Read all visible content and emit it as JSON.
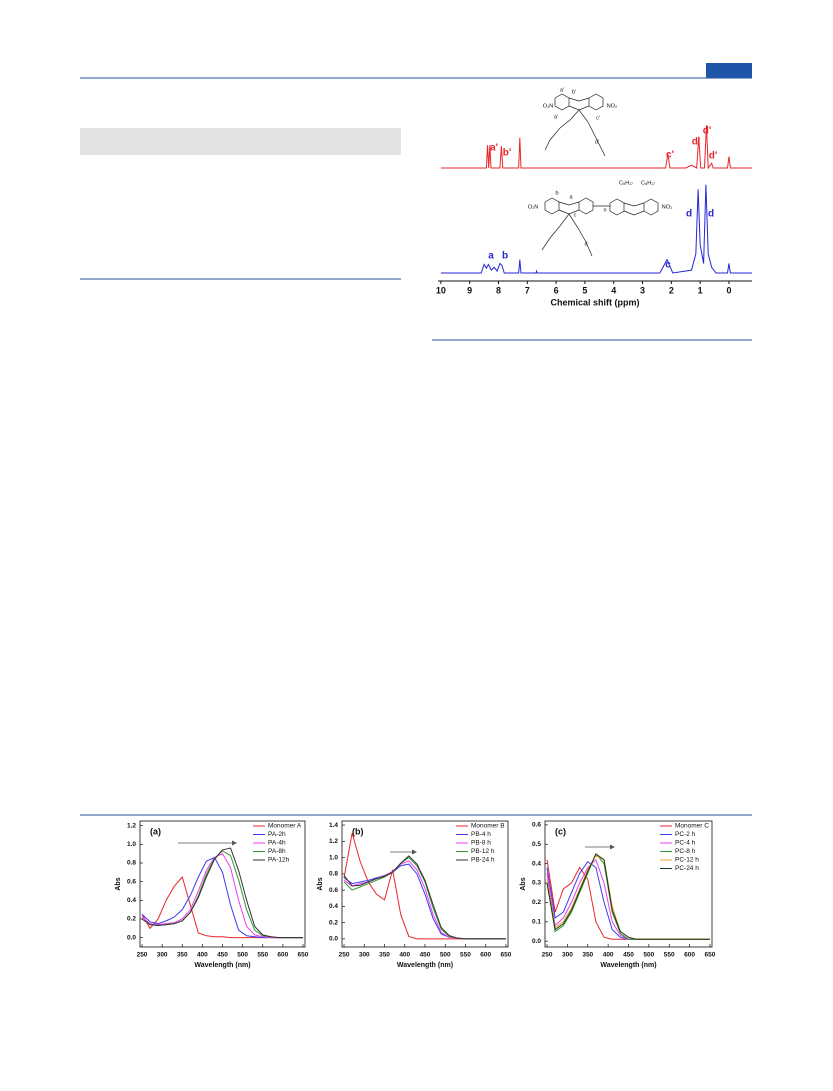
{
  "chart_data": [
    {
      "type": "nmr",
      "xlabel": "Chemical shift (ppm)",
      "xlim": [
        10.1,
        -0.8
      ],
      "xticks": [
        10,
        9,
        8,
        7,
        6,
        5,
        4,
        3,
        2,
        1,
        0
      ],
      "series": [
        {
          "color": "#e8252b",
          "x": [
            10,
            8.42,
            8.38,
            8.34,
            8.3,
            8.26,
            7.95,
            7.9,
            7.85,
            7.3,
            7.26,
            7.22,
            2.2,
            2.12,
            2.05,
            1.5,
            1.3,
            1.12,
            1.05,
            0.98,
            0.85,
            0.78,
            0.72,
            0.6,
            0.55,
            0.05,
            0,
            -0.05,
            -0.8
          ],
          "values": [
            0,
            0,
            24,
            0,
            24,
            0,
            0,
            23,
            0,
            0,
            32,
            0,
            0,
            15,
            0,
            0,
            3,
            0,
            33,
            0,
            0,
            45,
            0,
            5,
            0,
            0,
            12,
            0,
            0
          ]
        },
        {
          "color": "#2626d6",
          "x": [
            10,
            8.6,
            8.5,
            8.42,
            8.35,
            8.25,
            8.15,
            8.05,
            7.95,
            7.88,
            7.8,
            7.3,
            7.26,
            7.22,
            6.7,
            6.68,
            6.66,
            2.4,
            2.15,
            1.95,
            1.3,
            1.15,
            1.07,
            1.0,
            0.88,
            0.8,
            0.72,
            0.6,
            0.45,
            0.05,
            0,
            -0.05,
            -0.8
          ],
          "values": [
            0,
            0,
            9,
            5,
            9,
            3,
            6,
            2,
            10,
            8,
            0,
            0,
            14,
            0,
            0,
            2,
            0,
            0,
            14,
            0,
            3,
            20,
            88,
            30,
            10,
            93,
            20,
            6,
            0,
            0,
            10,
            0,
            0
          ]
        }
      ],
      "annotations": [
        "a'",
        "b'",
        "c'",
        "d'",
        "d'",
        "d'",
        "a",
        "b",
        "c",
        "d",
        "d"
      ],
      "structure_labels": [
        "O₂N",
        "NO₂",
        "a'",
        "b'",
        "a'",
        "c'",
        "d'",
        "O₂N",
        "NO₂",
        "b",
        "a",
        "c",
        "d",
        "n",
        "C₈H₁₇",
        "C₈H₁₇"
      ]
    },
    {
      "type": "line",
      "title": "(a)",
      "xlabel": "Wavelength (nm)",
      "ylabel": "Abs",
      "x": [
        250,
        270,
        290,
        310,
        330,
        350,
        370,
        390,
        410,
        430,
        450,
        470,
        490,
        510,
        530,
        550,
        570,
        590,
        610,
        630,
        650
      ],
      "xlim": [
        245,
        655
      ],
      "xticks": [
        250,
        300,
        350,
        400,
        450,
        500,
        550,
        600,
        650
      ],
      "ylim": [
        -0.1,
        1.25
      ],
      "yticks": [
        {
          "value": 0,
          "label": "0.0"
        },
        {
          "value": 0.2,
          "label": "0.2"
        },
        {
          "value": 0.4,
          "label": "0.4"
        },
        {
          "value": 0.6,
          "label": "0.6"
        },
        {
          "value": 0.8,
          "label": "0.8"
        },
        {
          "value": 1,
          "label": "1.0"
        },
        {
          "value": 1.2,
          "label": "1.2"
        }
      ],
      "legend": "upper right",
      "series": [
        {
          "name": "Monomer A",
          "color": "#e8252b",
          "values": [
            0.25,
            0.1,
            0.2,
            0.4,
            0.55,
            0.65,
            0.35,
            0.05,
            0.02,
            0.01,
            0.01,
            0,
            0,
            0,
            0,
            0,
            0,
            0,
            0,
            0,
            0
          ]
        },
        {
          "name": "PA-2h",
          "color": "#3b3bf0",
          "values": [
            0.25,
            0.17,
            0.15,
            0.18,
            0.22,
            0.3,
            0.45,
            0.65,
            0.82,
            0.86,
            0.7,
            0.35,
            0.08,
            0.02,
            0.01,
            0,
            0,
            0,
            0,
            0,
            0
          ]
        },
        {
          "name": "PA-4h",
          "color": "#f03cf0",
          "values": [
            0.22,
            0.15,
            0.14,
            0.15,
            0.16,
            0.2,
            0.3,
            0.5,
            0.72,
            0.86,
            0.9,
            0.75,
            0.4,
            0.12,
            0.03,
            0.01,
            0,
            0,
            0,
            0,
            0
          ]
        },
        {
          "name": "PA-8h",
          "color": "#2f9a2f",
          "values": [
            0.2,
            0.14,
            0.13,
            0.14,
            0.15,
            0.18,
            0.27,
            0.45,
            0.68,
            0.85,
            0.93,
            0.88,
            0.62,
            0.3,
            0.08,
            0.02,
            0.01,
            0,
            0,
            0,
            0
          ]
        },
        {
          "name": "PA-12h",
          "color": "#333333",
          "values": [
            0.2,
            0.14,
            0.13,
            0.14,
            0.15,
            0.18,
            0.27,
            0.43,
            0.65,
            0.84,
            0.94,
            0.96,
            0.72,
            0.4,
            0.12,
            0.03,
            0.01,
            0,
            0,
            0,
            0
          ]
        }
      ]
    },
    {
      "type": "line",
      "title": "(b)",
      "xlabel": "Wavelength (nm)",
      "ylabel": "Abs",
      "x": [
        250,
        270,
        290,
        310,
        330,
        350,
        370,
        390,
        410,
        430,
        450,
        470,
        490,
        510,
        530,
        550,
        570,
        590,
        610,
        630,
        650
      ],
      "xlim": [
        245,
        655
      ],
      "xticks": [
        250,
        300,
        350,
        400,
        450,
        500,
        550,
        600,
        650
      ],
      "ylim": [
        -0.1,
        1.45
      ],
      "yticks": [
        {
          "value": 0,
          "label": "0.0"
        },
        {
          "value": 0.2,
          "label": "0.2"
        },
        {
          "value": 0.4,
          "label": "0.4"
        },
        {
          "value": 0.6,
          "label": "0.6"
        },
        {
          "value": 0.8,
          "label": "0.8"
        },
        {
          "value": 1,
          "label": "1.0"
        },
        {
          "value": 1.2,
          "label": "1.2"
        },
        {
          "value": 1.4,
          "label": "1.4"
        }
      ],
      "legend": "upper right",
      "series": [
        {
          "name": "Monomer B",
          "color": "#e8252b",
          "values": [
            0.75,
            1.3,
            0.95,
            0.7,
            0.55,
            0.48,
            0.85,
            0.3,
            0.03,
            0,
            0,
            0,
            0,
            0,
            0,
            0,
            0,
            0,
            0,
            0,
            0
          ]
        },
        {
          "name": "PB-4 h",
          "color": "#3b3bf0",
          "values": [
            0.75,
            0.68,
            0.7,
            0.72,
            0.75,
            0.78,
            0.82,
            0.9,
            0.92,
            0.8,
            0.55,
            0.25,
            0.06,
            0.02,
            0.01,
            0,
            0,
            0,
            0,
            0,
            0
          ]
        },
        {
          "name": "PB-8 h",
          "color": "#f03cf0",
          "values": [
            0.72,
            0.65,
            0.68,
            0.7,
            0.74,
            0.78,
            0.83,
            0.92,
            0.96,
            0.85,
            0.62,
            0.3,
            0.08,
            0.02,
            0.01,
            0,
            0,
            0,
            0,
            0,
            0
          ]
        },
        {
          "name": "PB-12 h",
          "color": "#2f9a2f",
          "values": [
            0.7,
            0.6,
            0.64,
            0.68,
            0.72,
            0.76,
            0.82,
            0.93,
            1.0,
            0.9,
            0.7,
            0.38,
            0.12,
            0.03,
            0.01,
            0,
            0,
            0,
            0,
            0,
            0
          ]
        },
        {
          "name": "PB-24 h",
          "color": "#333333",
          "values": [
            0.78,
            0.65,
            0.66,
            0.7,
            0.74,
            0.77,
            0.82,
            0.93,
            1.02,
            0.92,
            0.72,
            0.42,
            0.14,
            0.04,
            0.01,
            0,
            0,
            0,
            0,
            0,
            0
          ]
        }
      ]
    },
    {
      "type": "line",
      "title": "(c)",
      "xlabel": "Wavelength (nm)",
      "ylabel": "Abs",
      "x": [
        250,
        270,
        290,
        310,
        330,
        350,
        370,
        390,
        410,
        430,
        450,
        470,
        490,
        510,
        530,
        550,
        570,
        590,
        610,
        630,
        650
      ],
      "xlim": [
        245,
        655
      ],
      "xticks": [
        250,
        300,
        350,
        400,
        450,
        500,
        550,
        600,
        650
      ],
      "ylim": [
        -0.03,
        0.62
      ],
      "yticks": [
        {
          "value": 0,
          "label": "0.0"
        },
        0.1,
        0.2,
        0.3,
        0.4,
        0.5,
        0.6
      ],
      "legend": "upper right",
      "series": [
        {
          "name": "Monomer C",
          "color": "#e8252b",
          "values": [
            0.42,
            0.15,
            0.27,
            0.3,
            0.38,
            0.32,
            0.1,
            0.02,
            0.01,
            0.01,
            0.01,
            0.01,
            0.01,
            0.01,
            0.01,
            0.01,
            0.01,
            0.01,
            0.01,
            0.01,
            0.01
          ]
        },
        {
          "name": "PC-2 h",
          "color": "#3b3bf0",
          "values": [
            0.38,
            0.12,
            0.15,
            0.25,
            0.35,
            0.41,
            0.38,
            0.2,
            0.06,
            0.02,
            0.01,
            0.01,
            0.01,
            0.01,
            0.01,
            0.01,
            0.01,
            0.01,
            0.01,
            0.01,
            0.01
          ]
        },
        {
          "name": "PC-4 h",
          "color": "#f03cf0",
          "values": [
            0.35,
            0.08,
            0.12,
            0.2,
            0.3,
            0.38,
            0.42,
            0.3,
            0.1,
            0.03,
            0.01,
            0.01,
            0.01,
            0.01,
            0.01,
            0.01,
            0.01,
            0.01,
            0.01,
            0.01,
            0.01
          ]
        },
        {
          "name": "PC-8 h",
          "color": "#2f9a2f",
          "values": [
            0.3,
            0.05,
            0.08,
            0.15,
            0.25,
            0.35,
            0.45,
            0.4,
            0.15,
            0.04,
            0.01,
            0.01,
            0.01,
            0.01,
            0.01,
            0.01,
            0.01,
            0.01,
            0.01,
            0.01,
            0.01
          ]
        },
        {
          "name": "PC-12 h",
          "color": "#f0a030",
          "values": [
            0.32,
            0.07,
            0.1,
            0.17,
            0.27,
            0.37,
            0.44,
            0.42,
            0.18,
            0.05,
            0.02,
            0.01,
            0.01,
            0.01,
            0.01,
            0.01,
            0.01,
            0.01,
            0.01,
            0.01,
            0.01
          ]
        },
        {
          "name": "PC-24 h",
          "color": "#1e3a1e",
          "values": [
            0.3,
            0.06,
            0.09,
            0.16,
            0.26,
            0.36,
            0.45,
            0.42,
            0.16,
            0.05,
            0.02,
            0.01,
            0.01,
            0.01,
            0.01,
            0.01,
            0.01,
            0.01,
            0.01,
            0.01,
            0.01
          ]
        }
      ]
    }
  ]
}
